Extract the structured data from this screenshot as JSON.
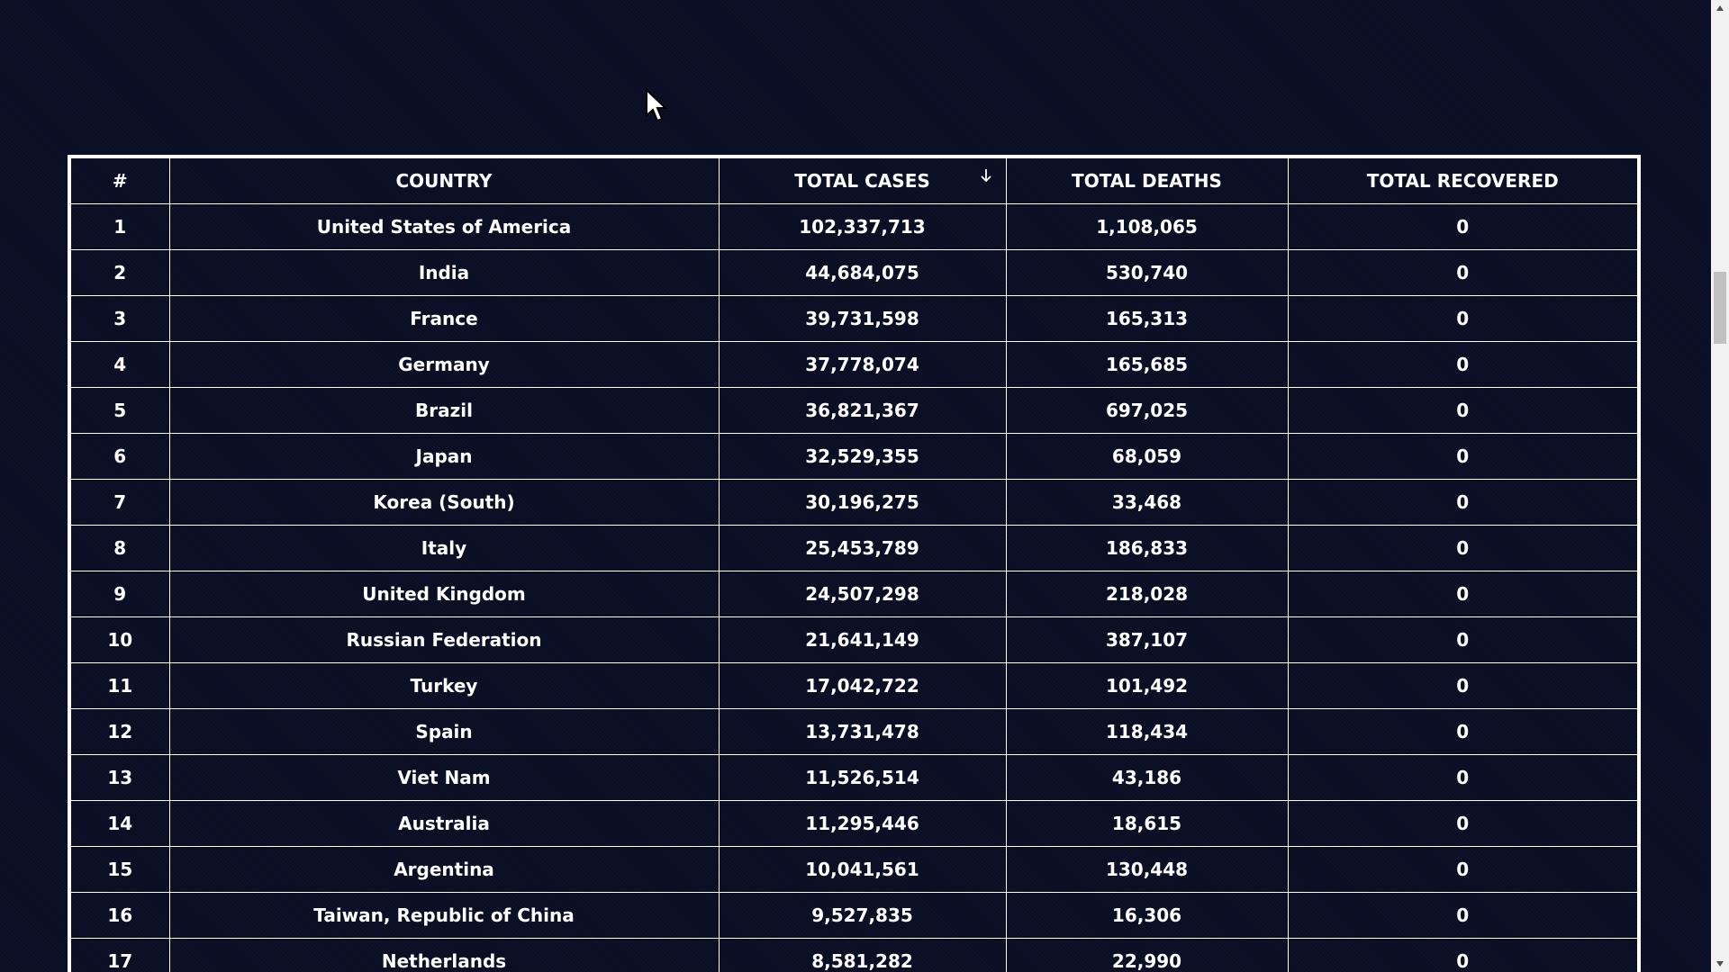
{
  "table": {
    "headers": {
      "rank": "#",
      "country": "COUNTRY",
      "total_cases": "TOTAL CASES",
      "total_deaths": "TOTAL DEATHS",
      "total_recovered": "TOTAL RECOVERED"
    },
    "sort": {
      "column": "total_cases",
      "direction": "descending",
      "icon": "arrow-down-icon"
    },
    "rows": [
      {
        "rank": "1",
        "country": "United States of America",
        "cases": "102,337,713",
        "deaths": "1,108,065",
        "recovered": "0"
      },
      {
        "rank": "2",
        "country": "India",
        "cases": "44,684,075",
        "deaths": "530,740",
        "recovered": "0"
      },
      {
        "rank": "3",
        "country": "France",
        "cases": "39,731,598",
        "deaths": "165,313",
        "recovered": "0"
      },
      {
        "rank": "4",
        "country": "Germany",
        "cases": "37,778,074",
        "deaths": "165,685",
        "recovered": "0"
      },
      {
        "rank": "5",
        "country": "Brazil",
        "cases": "36,821,367",
        "deaths": "697,025",
        "recovered": "0"
      },
      {
        "rank": "6",
        "country": "Japan",
        "cases": "32,529,355",
        "deaths": "68,059",
        "recovered": "0"
      },
      {
        "rank": "7",
        "country": "Korea (South)",
        "cases": "30,196,275",
        "deaths": "33,468",
        "recovered": "0"
      },
      {
        "rank": "8",
        "country": "Italy",
        "cases": "25,453,789",
        "deaths": "186,833",
        "recovered": "0"
      },
      {
        "rank": "9",
        "country": "United Kingdom",
        "cases": "24,507,298",
        "deaths": "218,028",
        "recovered": "0"
      },
      {
        "rank": "10",
        "country": "Russian Federation",
        "cases": "21,641,149",
        "deaths": "387,107",
        "recovered": "0"
      },
      {
        "rank": "11",
        "country": "Turkey",
        "cases": "17,042,722",
        "deaths": "101,492",
        "recovered": "0"
      },
      {
        "rank": "12",
        "country": "Spain",
        "cases": "13,731,478",
        "deaths": "118,434",
        "recovered": "0"
      },
      {
        "rank": "13",
        "country": "Viet Nam",
        "cases": "11,526,514",
        "deaths": "43,186",
        "recovered": "0"
      },
      {
        "rank": "14",
        "country": "Australia",
        "cases": "11,295,446",
        "deaths": "18,615",
        "recovered": "0"
      },
      {
        "rank": "15",
        "country": "Argentina",
        "cases": "10,041,561",
        "deaths": "130,448",
        "recovered": "0"
      },
      {
        "rank": "16",
        "country": "Taiwan, Republic of China",
        "cases": "9,527,835",
        "deaths": "16,306",
        "recovered": "0"
      },
      {
        "rank": "17",
        "country": "Netherlands",
        "cases": "8,581,282",
        "deaths": "22,990",
        "recovered": "0"
      }
    ]
  },
  "colors": {
    "background": "#0a0e24",
    "text": "#ffffff",
    "border": "#ffffff",
    "scrollbar_track": "#f1f1f1",
    "scrollbar_thumb": "#c1c1c1"
  }
}
